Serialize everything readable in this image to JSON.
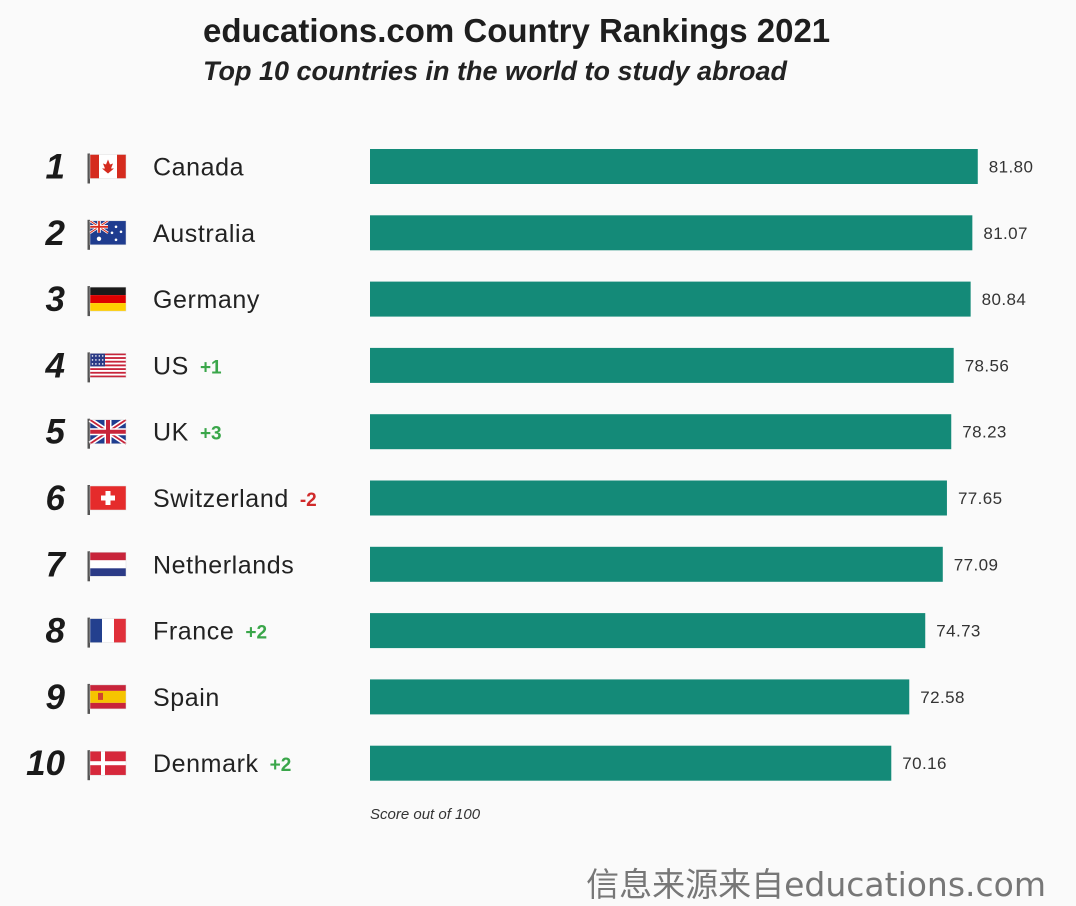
{
  "chart_data": {
    "type": "bar",
    "orientation": "horizontal",
    "title": "educations.com Country Rankings 2021",
    "subtitle": "Top 10 countries in the world to study abroad",
    "axis_note": "Score out of 100",
    "xlim": [
      0,
      100
    ],
    "grid": false,
    "bar_color": "#148a78",
    "up_color": "#3aa64a",
    "down_color": "#d02a2a",
    "categories": [
      "Canada",
      "Australia",
      "Germany",
      "US",
      "UK",
      "Switzerland",
      "Netherlands",
      "France",
      "Spain",
      "Denmark"
    ],
    "ranks": [
      "1",
      "2",
      "3",
      "4",
      "5",
      "6",
      "7",
      "8",
      "9",
      "10"
    ],
    "rank_changes": [
      "",
      "",
      "",
      "+1",
      "+3",
      "-2",
      "",
      "+2",
      "",
      "+2"
    ],
    "flag_icons": [
      "canada-flag-icon",
      "australia-flag-icon",
      "germany-flag-icon",
      "us-flag-icon",
      "uk-flag-icon",
      "switzerland-flag-icon",
      "netherlands-flag-icon",
      "france-flag-icon",
      "spain-flag-icon",
      "denmark-flag-icon"
    ],
    "values": [
      81.8,
      81.07,
      80.84,
      78.56,
      78.23,
      77.65,
      77.09,
      74.73,
      72.58,
      70.16
    ],
    "value_labels": [
      "81.80",
      "81.07",
      "80.84",
      "78.56",
      "78.23",
      "77.65",
      "77.09",
      "74.73",
      "72.58",
      "70.16"
    ]
  },
  "watermark": "信息来源来自educations.com"
}
